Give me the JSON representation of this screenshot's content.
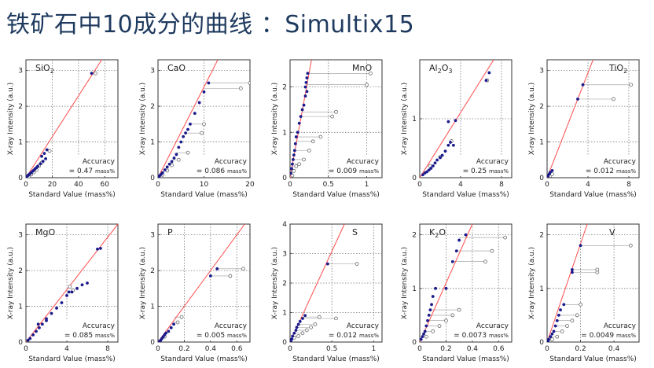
{
  "page": {
    "title": "铁矿石中10成分的曲线 ：Simultix15",
    "accuracy_label": "Accuracy",
    "x_axis_label": "Standard Value (mass%)",
    "y_axis_label": "X-ray Intensity (a.u.)",
    "colors": {
      "title": "#1f3a5f",
      "line": "#ff4c4c",
      "point_fill": "#1a1a8c",
      "grid": "#777777"
    }
  },
  "chart_data": [
    {
      "type": "scatter",
      "element": "SiO2",
      "label_base": "SiO",
      "label_sub": "2",
      "accuracy": "0.47",
      "unit": "mass%",
      "xlim": [
        0,
        70
      ],
      "ylim": [
        0,
        3.3
      ],
      "xticks": [
        0,
        20,
        40,
        60
      ],
      "yticks": [
        0,
        1,
        2,
        3
      ],
      "points": [
        [
          0.5,
          0.02
        ],
        [
          1,
          0.04
        ],
        [
          1.5,
          0.06
        ],
        [
          2,
          0.08
        ],
        [
          3,
          0.11
        ],
        [
          4,
          0.14
        ],
        [
          5,
          0.18
        ],
        [
          6,
          0.21
        ],
        [
          7,
          0.25
        ],
        [
          8,
          0.28
        ],
        [
          9,
          0.32
        ],
        [
          11,
          0.39
        ],
        [
          13,
          0.46
        ],
        [
          15,
          0.53
        ],
        [
          12,
          0.6
        ],
        [
          14,
          0.68
        ],
        [
          16,
          0.78
        ],
        [
          50,
          2.92
        ]
      ],
      "open_points": [
        [
          2,
          0.03
        ],
        [
          4,
          0.09
        ],
        [
          6,
          0.15
        ],
        [
          8,
          0.22
        ],
        [
          10,
          0.33
        ],
        [
          12,
          0.42
        ],
        [
          18,
          0.75
        ],
        [
          53,
          2.92
        ]
      ],
      "line": [
        [
          0,
          0
        ],
        [
          65,
          3.72
        ]
      ]
    },
    {
      "type": "scatter",
      "element": "CaO",
      "label_base": "CaO",
      "label_sub": "",
      "accuracy": "0.086",
      "unit": "mass%",
      "xlim": [
        0,
        20
      ],
      "ylim": [
        0,
        3.3
      ],
      "xticks": [
        0,
        10,
        20
      ],
      "yticks": [
        0,
        1,
        2,
        3
      ],
      "points": [
        [
          0.2,
          0.03
        ],
        [
          0.4,
          0.06
        ],
        [
          0.7,
          0.1
        ],
        [
          1,
          0.14
        ],
        [
          1.5,
          0.22
        ],
        [
          2,
          0.3
        ],
        [
          2.5,
          0.38
        ],
        [
          3,
          0.45
        ],
        [
          3.5,
          0.55
        ],
        [
          4,
          0.65
        ],
        [
          4.5,
          0.85
        ],
        [
          5,
          1.0
        ],
        [
          5.5,
          1.15
        ],
        [
          6,
          1.25
        ],
        [
          6.5,
          1.35
        ],
        [
          7,
          1.5
        ],
        [
          8,
          1.8
        ],
        [
          9,
          2.1
        ],
        [
          10,
          2.4
        ],
        [
          11,
          2.65
        ]
      ],
      "open_points": [
        [
          1,
          0.08
        ],
        [
          2,
          0.2
        ],
        [
          3,
          0.35
        ],
        [
          4.5,
          0.5
        ],
        [
          6.5,
          0.7
        ],
        [
          9.5,
          1.25
        ],
        [
          10,
          1.5
        ],
        [
          18,
          2.5
        ],
        [
          20,
          2.65
        ]
      ],
      "line": [
        [
          0,
          0
        ],
        [
          13,
          3.3
        ]
      ]
    },
    {
      "type": "scatter",
      "element": "MnO",
      "label_base": "MnO",
      "label_sub": "",
      "accuracy": "0.009",
      "unit": "mass%",
      "xlim": [
        0,
        1.2
      ],
      "ylim": [
        0,
        2.6
      ],
      "xticks": [
        0,
        0.5,
        1.0
      ],
      "yticks": [
        0,
        1,
        2
      ],
      "points": [
        [
          0.01,
          0.1
        ],
        [
          0.02,
          0.2
        ],
        [
          0.03,
          0.3
        ],
        [
          0.04,
          0.4
        ],
        [
          0.05,
          0.5
        ],
        [
          0.06,
          0.6
        ],
        [
          0.07,
          0.75
        ],
        [
          0.08,
          0.9
        ],
        [
          0.1,
          1.0
        ],
        [
          0.12,
          1.2
        ],
        [
          0.14,
          1.35
        ],
        [
          0.16,
          1.5
        ],
        [
          0.18,
          1.6
        ],
        [
          0.2,
          1.8
        ],
        [
          0.22,
          1.9
        ],
        [
          0.2,
          2.0
        ],
        [
          0.21,
          2.1
        ],
        [
          0.22,
          2.2
        ],
        [
          0.23,
          2.3
        ]
      ],
      "open_points": [
        [
          0.03,
          0.05
        ],
        [
          0.05,
          0.15
        ],
        [
          0.08,
          0.25
        ],
        [
          0.12,
          0.3
        ],
        [
          0.18,
          0.4
        ],
        [
          0.25,
          0.6
        ],
        [
          0.3,
          0.8
        ],
        [
          0.4,
          0.9
        ],
        [
          0.55,
          1.35
        ],
        [
          0.6,
          1.45
        ],
        [
          1.0,
          2.05
        ],
        [
          1.05,
          2.3
        ]
      ],
      "line": [
        [
          0,
          0
        ],
        [
          0.28,
          2.6
        ]
      ]
    },
    {
      "type": "scatter",
      "element": "Al2O3",
      "label_base": "Al",
      "label_sub": "2",
      "label_mid": "O",
      "label_sub2": "3",
      "accuracy": "0.25",
      "unit": "mass%",
      "xlim": [
        0,
        9
      ],
      "ylim": [
        0,
        2
      ],
      "xticks": [
        0,
        4,
        8
      ],
      "yticks": [
        0,
        1
      ],
      "points": [
        [
          0.3,
          0.05
        ],
        [
          0.5,
          0.08
        ],
        [
          0.7,
          0.1
        ],
        [
          0.9,
          0.13
        ],
        [
          1.1,
          0.16
        ],
        [
          1.3,
          0.2
        ],
        [
          1.5,
          0.25
        ],
        [
          1.7,
          0.3
        ],
        [
          2.0,
          0.34
        ],
        [
          2.2,
          0.38
        ],
        [
          2.5,
          0.45
        ],
        [
          2.8,
          0.55
        ],
        [
          3.0,
          0.6
        ],
        [
          3.3,
          0.55
        ],
        [
          2.8,
          0.95
        ],
        [
          3.5,
          0.97
        ],
        [
          6.5,
          1.65
        ],
        [
          6.8,
          1.78
        ]
      ],
      "open_points": [
        [
          1,
          0.2
        ],
        [
          2,
          0.35
        ],
        [
          3.1,
          0.62
        ],
        [
          6.6,
          1.65
        ]
      ],
      "line": [
        [
          0,
          0
        ],
        [
          8.5,
          2.35
        ]
      ]
    },
    {
      "type": "scatter",
      "element": "TiO2",
      "label_base": "TiO",
      "label_sub": "2",
      "accuracy": "0.012",
      "unit": "mass%",
      "xlim": [
        0,
        9
      ],
      "ylim": [
        0,
        3.3
      ],
      "xticks": [
        0,
        4,
        8
      ],
      "yticks": [
        0,
        1,
        2,
        3
      ],
      "points": [
        [
          0.1,
          0.05
        ],
        [
          0.2,
          0.1
        ],
        [
          0.3,
          0.15
        ],
        [
          0.5,
          0.2
        ],
        [
          3,
          2.2
        ],
        [
          3.5,
          2.6
        ]
      ],
      "open_points": [
        [
          0.3,
          0.05
        ],
        [
          0.5,
          0.1
        ],
        [
          6.5,
          2.2
        ],
        [
          8.2,
          2.6
        ]
      ],
      "line": [
        [
          0,
          0
        ],
        [
          4.5,
          3.3
        ]
      ]
    },
    {
      "type": "scatter",
      "element": "MgO",
      "label_base": "MgO",
      "label_sub": "",
      "accuracy": "0.085",
      "unit": "mass%",
      "xlim": [
        0,
        9
      ],
      "ylim": [
        0,
        3.3
      ],
      "xticks": [
        0,
        4,
        8
      ],
      "yticks": [
        0,
        1,
        2,
        3
      ],
      "points": [
        [
          0.2,
          0.05
        ],
        [
          0.4,
          0.1
        ],
        [
          0.7,
          0.2
        ],
        [
          1,
          0.3
        ],
        [
          1.3,
          0.4
        ],
        [
          1.6,
          0.5
        ],
        [
          2,
          0.65
        ],
        [
          2.5,
          0.8
        ],
        [
          3,
          0.95
        ],
        [
          3.5,
          1.1
        ],
        [
          4,
          1.3
        ],
        [
          4.5,
          1.4
        ],
        [
          5,
          1.5
        ],
        [
          5.5,
          1.6
        ],
        [
          6,
          1.65
        ],
        [
          1.2,
          0.5
        ],
        [
          2,
          0.6
        ],
        [
          4.2,
          1.4
        ],
        [
          7,
          2.6
        ],
        [
          7.3,
          2.62
        ]
      ],
      "open_points": [
        [
          4.3,
          1.55
        ],
        [
          4.6,
          1.45
        ]
      ],
      "line": [
        [
          0,
          0
        ],
        [
          9,
          3.3
        ]
      ]
    },
    {
      "type": "scatter",
      "element": "P",
      "label_base": "P",
      "label_sub": "",
      "accuracy": "0.005",
      "unit": "mass%",
      "xlim": [
        0,
        0.7
      ],
      "ylim": [
        0,
        3.3
      ],
      "xticks": [
        0,
        0.2,
        0.4,
        0.6
      ],
      "yticks": [
        0,
        1,
        2,
        3
      ],
      "points": [
        [
          0.01,
          0.02
        ],
        [
          0.02,
          0.05
        ],
        [
          0.03,
          0.1
        ],
        [
          0.04,
          0.15
        ],
        [
          0.05,
          0.2
        ],
        [
          0.06,
          0.25
        ],
        [
          0.08,
          0.3
        ],
        [
          0.1,
          0.4
        ],
        [
          0.12,
          0.5
        ],
        [
          0.4,
          1.85
        ],
        [
          0.45,
          2.05
        ]
      ],
      "open_points": [
        [
          0.05,
          0.15
        ],
        [
          0.15,
          0.55
        ],
        [
          0.18,
          0.7
        ],
        [
          0.55,
          1.85
        ],
        [
          0.65,
          2.05
        ]
      ],
      "line": [
        [
          0,
          0
        ],
        [
          0.66,
          3.3
        ]
      ]
    },
    {
      "type": "scatter",
      "element": "S",
      "label_base": "S",
      "label_sub": "",
      "accuracy": "0.012",
      "unit": "mass%",
      "xlim": [
        0,
        1.1
      ],
      "ylim": [
        0,
        4
      ],
      "xticks": [
        0,
        0.5,
        1.0
      ],
      "yticks": [
        0,
        1,
        2,
        3,
        4
      ],
      "points": [
        [
          0.01,
          0.05
        ],
        [
          0.02,
          0.1
        ],
        [
          0.03,
          0.2
        ],
        [
          0.05,
          0.3
        ],
        [
          0.07,
          0.4
        ],
        [
          0.08,
          0.5
        ],
        [
          0.1,
          0.6
        ],
        [
          0.12,
          0.7
        ],
        [
          0.15,
          0.8
        ],
        [
          0.18,
          0.9
        ],
        [
          0.45,
          2.65
        ]
      ],
      "open_points": [
        [
          0.05,
          0.15
        ],
        [
          0.1,
          0.2
        ],
        [
          0.15,
          0.3
        ],
        [
          0.2,
          0.4
        ],
        [
          0.25,
          0.5
        ],
        [
          0.3,
          0.6
        ],
        [
          0.35,
          0.85
        ],
        [
          0.55,
          0.8
        ],
        [
          0.8,
          2.65
        ]
      ],
      "line": [
        [
          0,
          0
        ],
        [
          0.65,
          4
        ]
      ]
    },
    {
      "type": "scatter",
      "element": "K2O",
      "label_base": "K",
      "label_sub": "2",
      "label_mid": "O",
      "accuracy": "0.0073",
      "unit": "mass%",
      "xlim": [
        0,
        0.7
      ],
      "ylim": [
        0,
        2.2
      ],
      "xticks": [
        0,
        0.2,
        0.4,
        0.6
      ],
      "yticks": [
        0,
        1,
        2
      ],
      "points": [
        [
          0.01,
          0.05
        ],
        [
          0.02,
          0.1
        ],
        [
          0.03,
          0.15
        ],
        [
          0.04,
          0.2
        ],
        [
          0.05,
          0.3
        ],
        [
          0.06,
          0.4
        ],
        [
          0.07,
          0.5
        ],
        [
          0.08,
          0.6
        ],
        [
          0.09,
          0.7
        ],
        [
          0.1,
          0.85
        ],
        [
          0.12,
          1.0
        ],
        [
          0.2,
          1.0
        ],
        [
          0.25,
          1.5
        ],
        [
          0.28,
          1.7
        ],
        [
          0.3,
          1.9
        ],
        [
          0.35,
          2.0
        ]
      ],
      "open_points": [
        [
          0.05,
          0.1
        ],
        [
          0.1,
          0.2
        ],
        [
          0.15,
          0.3
        ],
        [
          0.2,
          0.4
        ],
        [
          0.25,
          0.5
        ],
        [
          0.3,
          0.6
        ],
        [
          0.5,
          1.5
        ],
        [
          0.55,
          1.7
        ],
        [
          0.65,
          1.95
        ]
      ],
      "line": [
        [
          0,
          0
        ],
        [
          0.4,
          2.2
        ]
      ]
    },
    {
      "type": "scatter",
      "element": "V",
      "label_base": "V",
      "label_sub": "",
      "accuracy": "0.0049",
      "unit": "mass%",
      "xlim": [
        0,
        0.55
      ],
      "ylim": [
        0,
        2.2
      ],
      "xticks": [
        0,
        0.2,
        0.4
      ],
      "yticks": [
        0,
        1,
        2
      ],
      "points": [
        [
          0.005,
          0.02
        ],
        [
          0.01,
          0.05
        ],
        [
          0.02,
          0.1
        ],
        [
          0.03,
          0.15
        ],
        [
          0.04,
          0.2
        ],
        [
          0.05,
          0.3
        ],
        [
          0.06,
          0.4
        ],
        [
          0.07,
          0.5
        ],
        [
          0.08,
          0.6
        ],
        [
          0.1,
          0.7
        ],
        [
          0.15,
          1.3
        ],
        [
          0.15,
          1.35
        ],
        [
          0.2,
          1.8
        ]
      ],
      "open_points": [
        [
          0.03,
          0.05
        ],
        [
          0.06,
          0.1
        ],
        [
          0.09,
          0.2
        ],
        [
          0.12,
          0.3
        ],
        [
          0.15,
          0.4
        ],
        [
          0.18,
          0.5
        ],
        [
          0.2,
          0.7
        ],
        [
          0.3,
          1.3
        ],
        [
          0.3,
          1.35
        ],
        [
          0.5,
          1.8
        ]
      ],
      "line": [
        [
          0,
          0
        ],
        [
          0.24,
          2.2
        ]
      ]
    }
  ]
}
